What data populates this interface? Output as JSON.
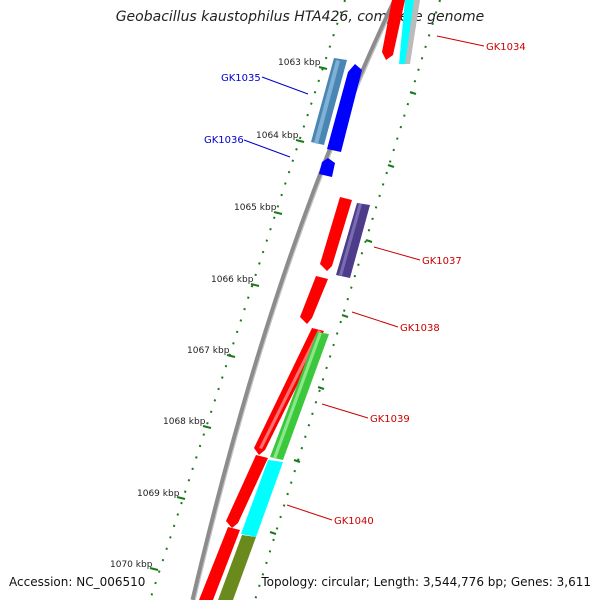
{
  "title": "Geobacillus kaustophilus HTA426, complete genome",
  "footer": {
    "accession": "Accession: NC_006510",
    "summary": "Topology: circular; Length: 3,544,776 bp; Genes: 3,611"
  },
  "ticks": [
    {
      "label": "1063 kbp"
    },
    {
      "label": "1064 kbp"
    },
    {
      "label": "1065 kbp"
    },
    {
      "label": "1066 kbp"
    },
    {
      "label": "1067 kbp"
    },
    {
      "label": "1068 kbp"
    },
    {
      "label": "1069 kbp"
    },
    {
      "label": "1070 kbp"
    }
  ],
  "genes": [
    {
      "label": "GK1034",
      "color": "#cc0000"
    },
    {
      "label": "GK1035",
      "color": "#0000cc"
    },
    {
      "label": "GK1036",
      "color": "#0000cc"
    },
    {
      "label": "GK1037",
      "color": "#cc0000"
    },
    {
      "label": "GK1038",
      "color": "#cc0000"
    },
    {
      "label": "GK1039",
      "color": "#cc0000"
    },
    {
      "label": "GK1040",
      "color": "#cc0000"
    }
  ],
  "colors": {
    "backbone": "#8c8c8c",
    "tick": "#1a7a1a",
    "cds": "#ff0000",
    "gene_blue": "#0000ff",
    "gene_steel": "#4a86b4",
    "gene_purple": "#4c3c8a",
    "gene_green": "#3cc83c",
    "gene_cyan": "#00ffff",
    "gene_olive": "#6a8a1e",
    "gene_gray": "#bbbbbb"
  }
}
